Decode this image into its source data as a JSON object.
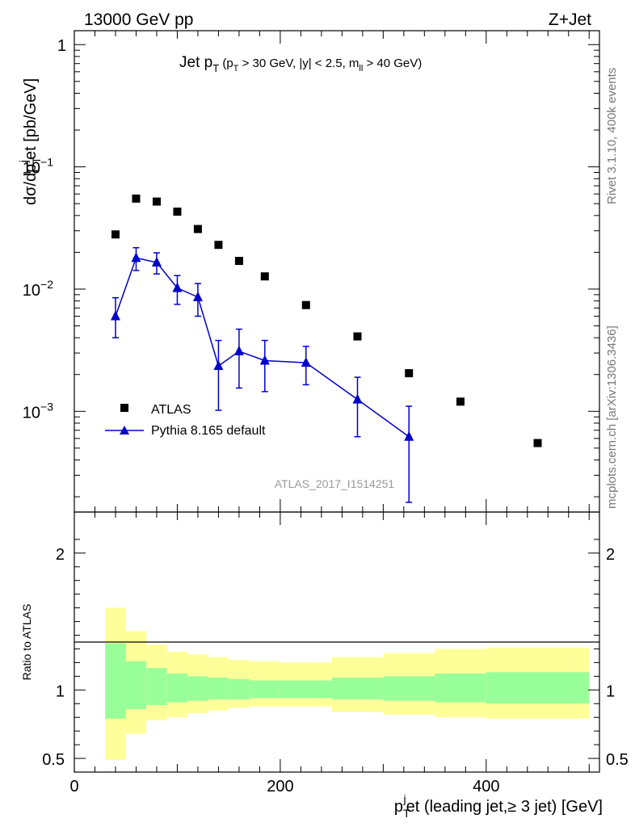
{
  "header": {
    "left": "13000 GeV pp",
    "right": "Z+Jet"
  },
  "side": {
    "rivet": "Rivet 3.1.10,  400k events",
    "mcplots": "mcplots.cern.ch [arXiv:1306.3436]"
  },
  "top_panel": {
    "title_main": "Jet p",
    "title_main_sub": "T",
    "title_cuts_a": "(p",
    "title_cuts_a_sub": "T",
    "title_cuts_b": " > 30 GeV, |y| < 2.5, m",
    "title_cuts_b_sub": "ll",
    "title_cuts_c": " > 40 GeV)",
    "ylabel_a": "dσ/dp",
    "ylabel_sub": "T",
    "ylabel_sup": "j",
    "ylabel_b": "et [pb/GeV]",
    "analysis_label": "ATLAS_2017_I1514251",
    "y_ticks": [
      {
        "value": 1,
        "label": "1"
      },
      {
        "value": 0.1,
        "label": "10",
        "exp": "−1"
      },
      {
        "value": 0.01,
        "label": "10",
        "exp": "−2"
      },
      {
        "value": 0.001,
        "label": "10",
        "exp": "−3"
      }
    ]
  },
  "bottom_panel": {
    "ylabel": "Ratio to ATLAS",
    "y_ticks": [
      {
        "value": 0.5,
        "label": "0.5"
      },
      {
        "value": 1,
        "label": "1"
      },
      {
        "value": 2,
        "label": "2"
      }
    ]
  },
  "x_axis": {
    "label_a": "p",
    "label_sub": "T",
    "label_sup": "j",
    "label_b": "et (leading jet,≥ 3 jet) [GeV]",
    "ticks": [
      {
        "value": 0,
        "label": "0"
      },
      {
        "value": 200,
        "label": "200"
      },
      {
        "value": 400,
        "label": "400"
      }
    ]
  },
  "legend": {
    "atlas": "ATLAS",
    "mc": "Pythia 8.165 default"
  },
  "colors": {
    "mc": "#0000cc",
    "band_inner": "#99ff99",
    "band_outer": "#ffff99",
    "data": "#000000"
  },
  "chart_data": {
    "type": "scatter",
    "title": "Jet pT (pT > 30 GeV, |y| < 2.5, mll > 40 GeV)",
    "xlabel": "p_T^jet (leading jet,≥ 3 jet) [GeV]",
    "ylabel": "dσ/dp_T^jet [pb/GeV]",
    "xlim": [
      0,
      510
    ],
    "ylim": [
      0.00015,
      1.3
    ],
    "yscale": "log",
    "ratio_ylim": [
      0.4,
      2.3
    ],
    "series": [
      {
        "name": "ATLAS",
        "marker": "square",
        "x": [
          40,
          60,
          80,
          100,
          120,
          140,
          160,
          185,
          225,
          275,
          325,
          375,
          450
        ],
        "y": [
          0.028,
          0.055,
          0.052,
          0.043,
          0.031,
          0.023,
          0.017,
          0.0127,
          0.0074,
          0.0041,
          0.00205,
          0.0012,
          0.00055
        ]
      },
      {
        "name": "Pythia 8.165 default",
        "marker": "triangle",
        "x": [
          40,
          60,
          80,
          100,
          120,
          140,
          160,
          185,
          225,
          275,
          325
        ],
        "y": [
          0.006,
          0.018,
          0.0165,
          0.0102,
          0.0086,
          0.00235,
          0.0031,
          0.0026,
          0.0025,
          0.00125,
          0.00062
        ],
        "err_lo": [
          0.004,
          0.0142,
          0.0133,
          0.0075,
          0.006,
          0.00102,
          0.00155,
          0.00145,
          0.00165,
          0.00062,
          0.00018
        ],
        "err_hi": [
          0.0085,
          0.0218,
          0.0198,
          0.0129,
          0.0111,
          0.0038,
          0.0047,
          0.0038,
          0.0034,
          0.0019,
          0.0011
        ]
      }
    ],
    "ratio_bands": [
      {
        "x_lo": 30,
        "x_hi": 50,
        "inner_lo": 0.79,
        "inner_hi": 1.34,
        "outer_lo": 0.49,
        "outer_hi": 1.6
      },
      {
        "x_lo": 50,
        "x_hi": 70,
        "inner_lo": 0.86,
        "inner_hi": 1.21,
        "outer_lo": 0.68,
        "outer_hi": 1.43
      },
      {
        "x_lo": 70,
        "x_hi": 90,
        "inner_lo": 0.89,
        "inner_hi": 1.16,
        "outer_lo": 0.78,
        "outer_hi": 1.33
      },
      {
        "x_lo": 90,
        "x_hi": 110,
        "inner_lo": 0.91,
        "inner_hi": 1.12,
        "outer_lo": 0.8,
        "outer_hi": 1.28
      },
      {
        "x_lo": 110,
        "x_hi": 130,
        "inner_lo": 0.92,
        "inner_hi": 1.1,
        "outer_lo": 0.83,
        "outer_hi": 1.26
      },
      {
        "x_lo": 130,
        "x_hi": 150,
        "inner_lo": 0.93,
        "inner_hi": 1.09,
        "outer_lo": 0.85,
        "outer_hi": 1.24
      },
      {
        "x_lo": 150,
        "x_hi": 170,
        "inner_lo": 0.93,
        "inner_hi": 1.08,
        "outer_lo": 0.87,
        "outer_hi": 1.22
      },
      {
        "x_lo": 170,
        "x_hi": 200,
        "inner_lo": 0.94,
        "inner_hi": 1.07,
        "outer_lo": 0.88,
        "outer_hi": 1.21
      },
      {
        "x_lo": 200,
        "x_hi": 250,
        "inner_lo": 0.94,
        "inner_hi": 1.07,
        "outer_lo": 0.88,
        "outer_hi": 1.2
      },
      {
        "x_lo": 250,
        "x_hi": 300,
        "inner_lo": 0.93,
        "inner_hi": 1.09,
        "outer_lo": 0.84,
        "outer_hi": 1.24
      },
      {
        "x_lo": 300,
        "x_hi": 350,
        "inner_lo": 0.92,
        "inner_hi": 1.1,
        "outer_lo": 0.82,
        "outer_hi": 1.27
      },
      {
        "x_lo": 350,
        "x_hi": 400,
        "inner_lo": 0.91,
        "inner_hi": 1.12,
        "outer_lo": 0.8,
        "outer_hi": 1.3
      },
      {
        "x_lo": 400,
        "x_hi": 500,
        "inner_lo": 0.9,
        "inner_hi": 1.13,
        "outer_lo": 0.79,
        "outer_hi": 1.31
      }
    ]
  }
}
